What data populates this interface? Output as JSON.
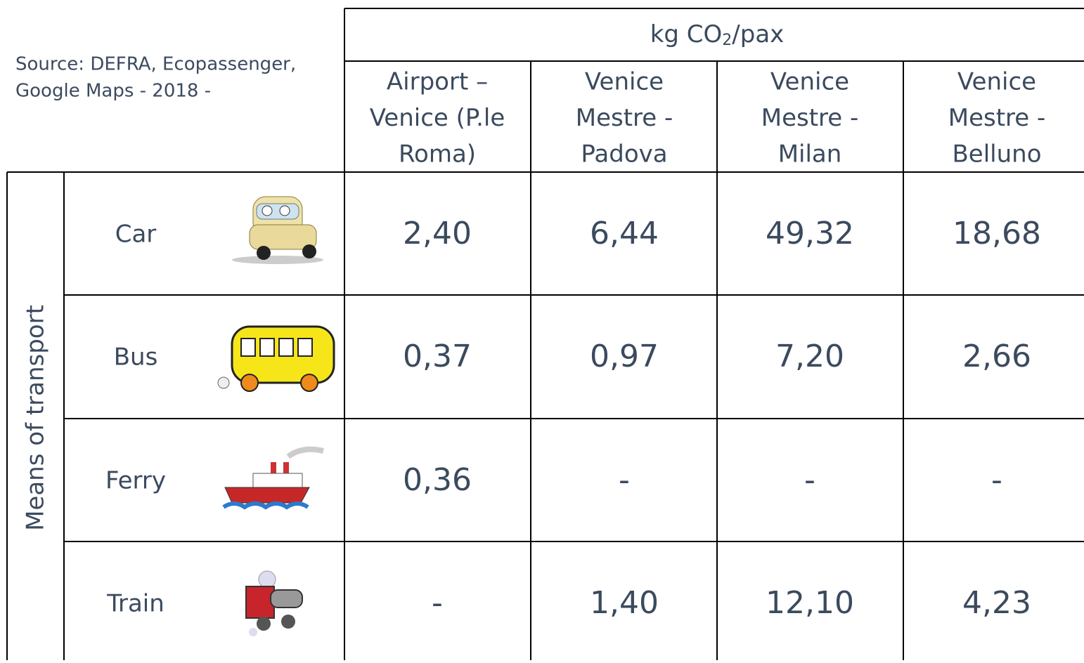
{
  "source": [
    "Source: DEFRA, Ecopassenger,",
    "Google Maps - 2018 -"
  ],
  "unit": {
    "before": "kg CO",
    "subscript": "2",
    "after": "/pax"
  },
  "row_group_label": "Means of transport",
  "columns": [
    [
      "Airport –",
      "Venice (P.le",
      "Roma)"
    ],
    [
      "Venice",
      "Mestre -",
      "Padova"
    ],
    [
      "Venice",
      "Mestre -",
      "Milan"
    ],
    [
      "Venice",
      "Mestre -",
      "Belluno"
    ]
  ],
  "rows": [
    {
      "label": "Car",
      "values": [
        "2,40",
        "6,44",
        "49,32",
        "18,68"
      ]
    },
    {
      "label": "Bus",
      "values": [
        "0,37",
        "0,97",
        "7,20",
        "2,66"
      ]
    },
    {
      "label": "Ferry",
      "values": [
        "0,36",
        "-",
        "-",
        "-"
      ]
    },
    {
      "label": "Train",
      "values": [
        "-",
        "1,40",
        "12,10",
        "4,23"
      ]
    }
  ]
}
